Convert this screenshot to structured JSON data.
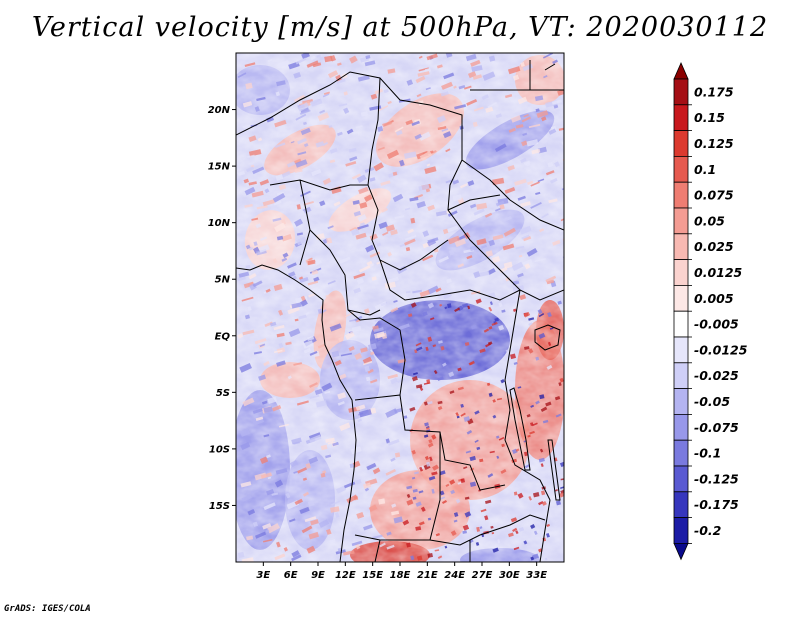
{
  "title": "Vertical velocity [m/s] at 500hPa, VT: 2020030112",
  "credit": "GrADS: IGES/COLA",
  "map": {
    "lat_range": [
      -20,
      25
    ],
    "lon_range": [
      0,
      36
    ],
    "lat_ticks": [
      {
        "value": 20,
        "label": "20N"
      },
      {
        "value": 15,
        "label": "15N"
      },
      {
        "value": 10,
        "label": "10N"
      },
      {
        "value": 5,
        "label": "5N"
      },
      {
        "value": 0,
        "label": "EQ"
      },
      {
        "value": -5,
        "label": "5S"
      },
      {
        "value": -10,
        "label": "10S"
      },
      {
        "value": -15,
        "label": "15S"
      }
    ],
    "lon_ticks": [
      {
        "value": 3,
        "label": "3E"
      },
      {
        "value": 6,
        "label": "6E"
      },
      {
        "value": 9,
        "label": "9E"
      },
      {
        "value": 12,
        "label": "12E"
      },
      {
        "value": 15,
        "label": "15E"
      },
      {
        "value": 18,
        "label": "18E"
      },
      {
        "value": 21,
        "label": "21E"
      },
      {
        "value": 24,
        "label": "24E"
      },
      {
        "value": 27,
        "label": "27E"
      },
      {
        "value": 30,
        "label": "30E"
      },
      {
        "value": 33,
        "label": "33E"
      }
    ]
  },
  "colorbar": {
    "levels": [
      {
        "label": "0.175",
        "color": "#a50f15"
      },
      {
        "label": "0.15",
        "color": "#c8181d"
      },
      {
        "label": "0.125",
        "color": "#dc3a2f"
      },
      {
        "label": "0.1",
        "color": "#e65a4f"
      },
      {
        "label": "0.075",
        "color": "#ef7d72"
      },
      {
        "label": "0.05",
        "color": "#f49c93"
      },
      {
        "label": "0.025",
        "color": "#f8b9b2"
      },
      {
        "label": "0.0125",
        "color": "#fbd3cf"
      },
      {
        "label": "0.005",
        "color": "#fde8e6"
      },
      {
        "label": "-0.005",
        "color": "#ffffff"
      },
      {
        "label": "-0.0125",
        "color": "#e6e6fb"
      },
      {
        "label": "-0.025",
        "color": "#cfcff7"
      },
      {
        "label": "-0.05",
        "color": "#b4b4f1"
      },
      {
        "label": "-0.075",
        "color": "#9898ea"
      },
      {
        "label": "-0.1",
        "color": "#7a7adf"
      },
      {
        "label": "-0.125",
        "color": "#5a5ad2"
      },
      {
        "label": "-0.175",
        "color": "#3636bd"
      },
      {
        "label": "-0.2",
        "color": "#1c1ca6"
      }
    ],
    "top_color": "#8b0000",
    "bottom_color": "#0a0a8c"
  },
  "colors": {
    "positive": "#e0413a",
    "negative": "#4a4ad6",
    "boundary": "#000000"
  }
}
